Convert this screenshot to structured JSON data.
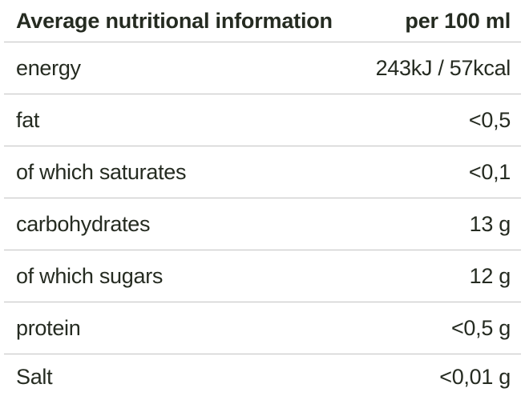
{
  "table": {
    "header": {
      "label": "Average nutritional information",
      "value": "per 100 ml"
    },
    "rows": [
      {
        "label": "energy",
        "value": "243kJ / 57kcal"
      },
      {
        "label": "fat",
        "value": "<0,5"
      },
      {
        "label": "of which saturates",
        "value": "<0,1"
      },
      {
        "label": "carbohydrates",
        "value": "13 g"
      },
      {
        "label": "of which sugars",
        "value": "12 g"
      },
      {
        "label": "protein",
        "value": "<0,5 g"
      },
      {
        "label": "Salt",
        "value": "<0,01 g"
      }
    ],
    "colors": {
      "text": "#252b21",
      "divider": "#c2c2c2",
      "background": "#ffffff"
    }
  }
}
